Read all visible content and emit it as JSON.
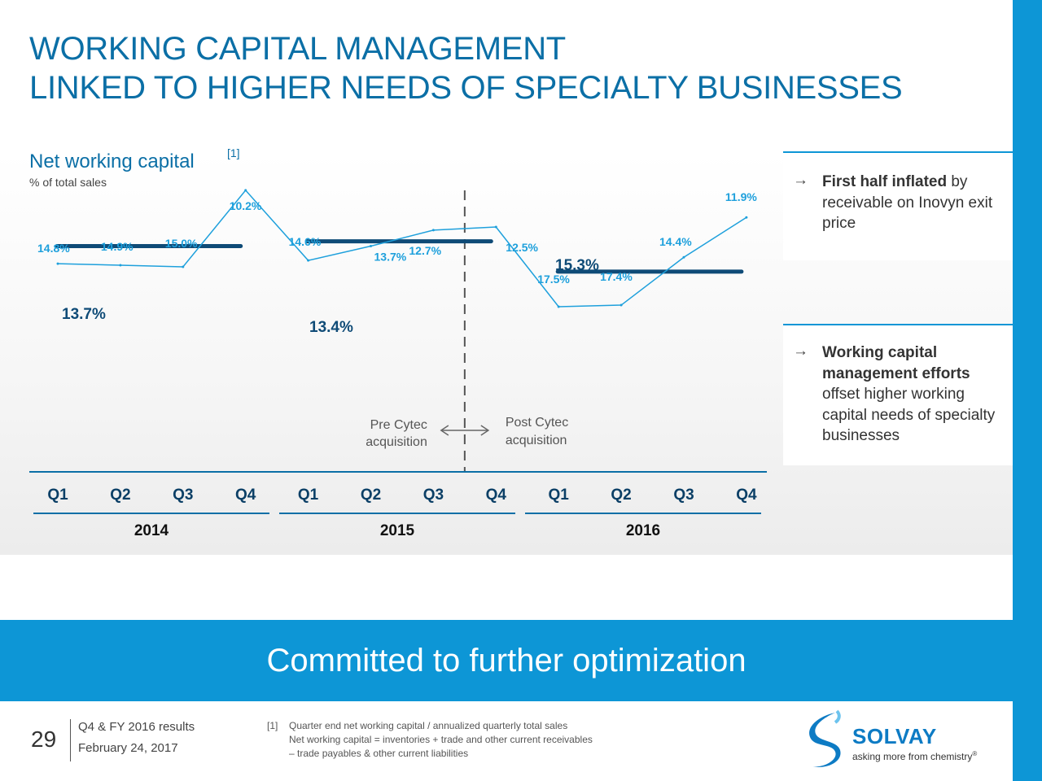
{
  "title": {
    "line1": "WORKING CAPITAL MANAGEMENT",
    "line2": "LINKED TO HIGHER NEEDS OF SPECIALTY BUSINESSES"
  },
  "chart_data": {
    "type": "line",
    "title": "Net working capital",
    "title_footnote": "[1]",
    "subtitle": "% of total sales",
    "categories": [
      "Q1",
      "Q2",
      "Q3",
      "Q4",
      "Q1",
      "Q2",
      "Q3",
      "Q4",
      "Q1",
      "Q2",
      "Q3",
      "Q4"
    ],
    "years": [
      "2014",
      "2015",
      "2016"
    ],
    "series": [
      {
        "values": [
          14.8,
          14.9,
          15.0,
          10.2,
          14.6,
          13.7,
          12.7,
          12.5,
          17.5,
          17.4,
          14.4,
          11.9
        ],
        "labels": [
          "14.8%",
          "14.9%",
          "15.0%",
          "10.2%",
          "14.6%",
          "13.7%",
          "12.7%",
          "12.5%",
          "17.5%",
          "17.4%",
          "14.4%",
          "11.9%"
        ],
        "color": "#1ea0dc"
      }
    ],
    "averages": [
      {
        "year": "2014",
        "value": 13.7,
        "label": "13.7%"
      },
      {
        "year": "2015",
        "value": 13.4,
        "label": "13.4%"
      },
      {
        "year": "2016",
        "value": 15.3,
        "label": "15.3%"
      }
    ],
    "average_color": "#0f4b77",
    "ylim": [
      8.5,
      18.5
    ],
    "divider": {
      "between": "2015 Q3 and 2015 Q4",
      "left_label": [
        "Pre Cytec",
        "acquisition"
      ],
      "right_label": [
        "Post Cytec",
        "acquisition"
      ]
    },
    "grid": false,
    "legend": "none"
  },
  "side_notes": [
    {
      "bold": "First half inflated",
      "text": " by receivable on Inovyn exit price"
    },
    {
      "bold": "Working capital management efforts",
      "text": " offset higher working capital needs of specialty businesses"
    }
  ],
  "arrow_glyph": "→",
  "banner": "Committed to further optimization",
  "footer": {
    "page": "29",
    "results": "Q4 & FY 2016 results",
    "date": "February 24, 2017",
    "footnote_ref": "[1]",
    "footnote_lines": [
      "Quarter end net working capital / annualized quarterly total sales",
      "Net working capital = inventories + trade and other current receivables",
      "– trade payables & other current liabilities"
    ]
  },
  "logo": {
    "name": "SOLVAY",
    "tagline": "asking more from chemistry",
    "mark": "®",
    "icon": "solvay-s-logo-icon"
  },
  "colors": {
    "accent": "#0d96d6",
    "title": "#0b6fa6",
    "line": "#1ea0dc",
    "average": "#0f4b77"
  }
}
